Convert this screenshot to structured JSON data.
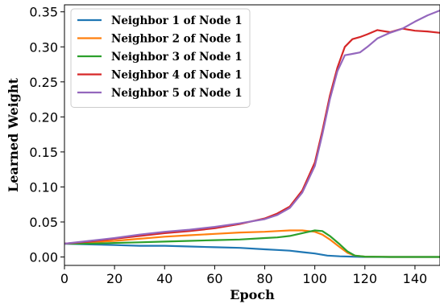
{
  "chart_data": {
    "type": "line",
    "title": "",
    "xlabel": "Epoch",
    "ylabel": "Learned Weight",
    "xlim": [
      0,
      150
    ],
    "ylim": [
      -0.012,
      0.36
    ],
    "xticks": [
      0,
      20,
      40,
      60,
      80,
      100,
      120,
      140
    ],
    "yticks": [
      0.0,
      0.05,
      0.1,
      0.15,
      0.2,
      0.25,
      0.3,
      0.35
    ],
    "ytick_labels": [
      "0.00",
      "0.05",
      "0.10",
      "0.15",
      "0.20",
      "0.25",
      "0.30",
      "0.35"
    ],
    "grid": false,
    "legend_position": "top-left",
    "series": [
      {
        "name": "Neighbor 1 of Node 1",
        "color": "#1f77b4",
        "x": [
          0,
          10,
          20,
          30,
          40,
          50,
          60,
          70,
          80,
          85,
          90,
          95,
          100,
          105,
          110,
          115,
          120,
          130,
          140,
          150
        ],
        "y": [
          0.019,
          0.018,
          0.017,
          0.016,
          0.016,
          0.015,
          0.014,
          0.013,
          0.011,
          0.01,
          0.009,
          0.007,
          0.005,
          0.002,
          0.001,
          0.0005,
          0.0,
          0.0,
          0.0,
          0.0
        ]
      },
      {
        "name": "Neighbor 2 of Node 1",
        "color": "#ff7f0e",
        "x": [
          0,
          10,
          20,
          30,
          40,
          50,
          60,
          70,
          80,
          85,
          90,
          95,
          100,
          103,
          106,
          110,
          113,
          116,
          120,
          130,
          140,
          150
        ],
        "y": [
          0.019,
          0.021,
          0.023,
          0.026,
          0.029,
          0.031,
          0.033,
          0.035,
          0.036,
          0.037,
          0.038,
          0.038,
          0.036,
          0.032,
          0.025,
          0.014,
          0.006,
          0.002,
          0.0005,
          0.0,
          0.0,
          0.0
        ]
      },
      {
        "name": "Neighbor 3 of Node 1",
        "color": "#2ca02c",
        "x": [
          0,
          10,
          20,
          30,
          40,
          50,
          60,
          70,
          80,
          85,
          90,
          95,
          100,
          103,
          106,
          110,
          113,
          116,
          120,
          130,
          140,
          150
        ],
        "y": [
          0.019,
          0.019,
          0.02,
          0.021,
          0.022,
          0.023,
          0.024,
          0.025,
          0.027,
          0.028,
          0.03,
          0.034,
          0.038,
          0.037,
          0.03,
          0.018,
          0.008,
          0.002,
          0.0005,
          0.0,
          0.0,
          0.0
        ]
      },
      {
        "name": "Neighbor 4 of Node 1",
        "color": "#d62728",
        "x": [
          0,
          10,
          20,
          30,
          40,
          50,
          60,
          70,
          80,
          85,
          90,
          95,
          100,
          103,
          106,
          109,
          112,
          115,
          118,
          121,
          125,
          130,
          135,
          140,
          145,
          150
        ],
        "y": [
          0.019,
          0.022,
          0.026,
          0.03,
          0.034,
          0.037,
          0.041,
          0.047,
          0.055,
          0.062,
          0.072,
          0.095,
          0.135,
          0.18,
          0.23,
          0.27,
          0.3,
          0.311,
          0.314,
          0.318,
          0.324,
          0.321,
          0.326,
          0.323,
          0.322,
          0.32
        ]
      },
      {
        "name": "Neighbor 5 of Node 1",
        "color": "#9467bd",
        "x": [
          0,
          10,
          20,
          30,
          40,
          50,
          60,
          70,
          80,
          85,
          90,
          95,
          100,
          103,
          106,
          109,
          112,
          115,
          118,
          121,
          125,
          130,
          135,
          140,
          145,
          150
        ],
        "y": [
          0.019,
          0.023,
          0.027,
          0.032,
          0.036,
          0.039,
          0.043,
          0.048,
          0.054,
          0.06,
          0.07,
          0.092,
          0.13,
          0.175,
          0.225,
          0.265,
          0.288,
          0.29,
          0.292,
          0.3,
          0.312,
          0.32,
          0.326,
          0.336,
          0.345,
          0.352
        ]
      }
    ]
  }
}
